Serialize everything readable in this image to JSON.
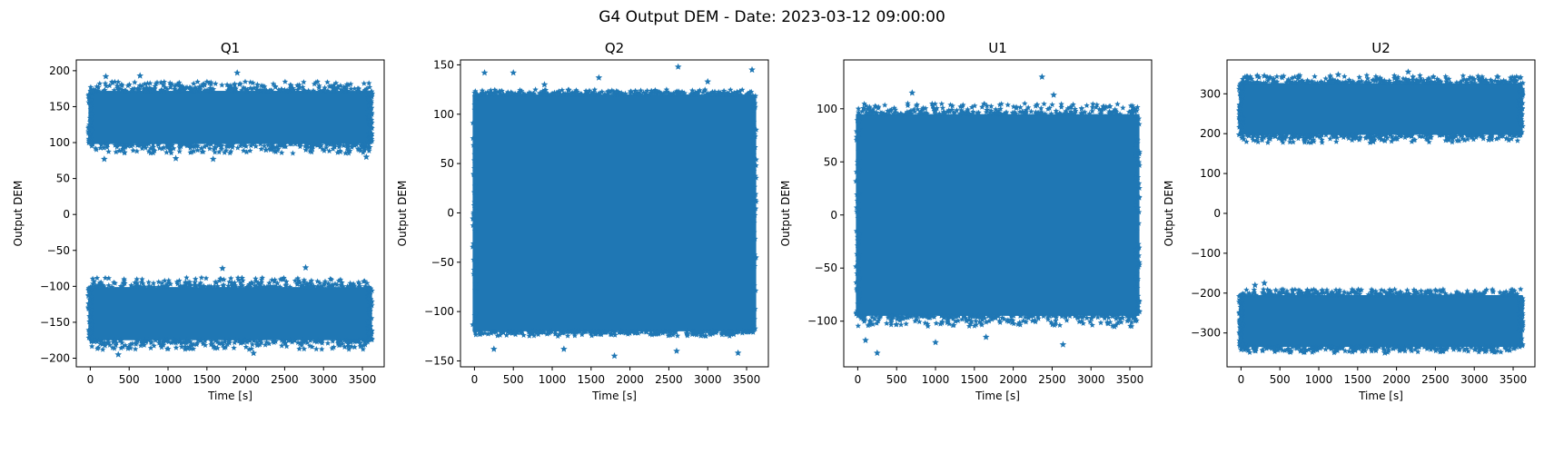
{
  "figure": {
    "suptitle": "G4 Output DEM - Date: 2023-03-12 09:00:00"
  },
  "colors": {
    "series": "#1f77b4",
    "axes": "#000000",
    "background": "#ffffff"
  },
  "chart_data": [
    {
      "type": "scatter",
      "marker": "star",
      "title": "Q1",
      "xlabel": "Time [s]",
      "ylabel": "Output DEM",
      "xlim": [
        -180,
        3780
      ],
      "ylim": [
        -212,
        215
      ],
      "xticks": [
        0,
        500,
        1000,
        1500,
        2000,
        2500,
        3000,
        3500
      ],
      "yticks": [
        -200,
        -150,
        -100,
        -50,
        0,
        50,
        100,
        150,
        200
      ],
      "x_range": [
        0,
        3600
      ],
      "bands": [
        {
          "center": 135,
          "core_halfwidth": 37,
          "outer_halfwidth": 50
        },
        {
          "center": -138,
          "core_halfwidth": 37,
          "outer_halfwidth": 50
        }
      ],
      "outliers": [
        [
          200,
          192
        ],
        [
          640,
          193
        ],
        [
          1890,
          197
        ],
        [
          1700,
          -75
        ],
        [
          2770,
          -74
        ],
        [
          360,
          -195
        ],
        [
          1100,
          78
        ],
        [
          1580,
          77
        ],
        [
          3550,
          80
        ],
        [
          180,
          77
        ],
        [
          2100,
          -193
        ]
      ],
      "grid": false
    },
    {
      "type": "scatter",
      "marker": "star",
      "title": "Q2",
      "xlabel": "Time [s]",
      "ylabel": "Output DEM",
      "xlim": [
        -180,
        3780
      ],
      "ylim": [
        -156,
        155
      ],
      "xticks": [
        0,
        500,
        1000,
        1500,
        2000,
        2500,
        3000,
        3500
      ],
      "yticks": [
        -150,
        -100,
        -50,
        0,
        50,
        100,
        150
      ],
      "x_range": [
        0,
        3600
      ],
      "bands": [
        {
          "center": 0,
          "core_halfwidth": 120,
          "outer_halfwidth": 125
        }
      ],
      "outliers": [
        [
          130,
          142
        ],
        [
          2620,
          148
        ],
        [
          3570,
          145
        ],
        [
          500,
          142
        ],
        [
          1800,
          -145
        ],
        [
          3390,
          -142
        ],
        [
          250,
          -138
        ],
        [
          1150,
          -138
        ],
        [
          2600,
          -140
        ],
        [
          900,
          130
        ],
        [
          1600,
          137
        ],
        [
          3000,
          133
        ]
      ],
      "grid": false
    },
    {
      "type": "scatter",
      "marker": "star",
      "title": "U1",
      "xlabel": "Time [s]",
      "ylabel": "Output DEM",
      "xlim": [
        -180,
        3780
      ],
      "ylim": [
        -143,
        146
      ],
      "xticks": [
        0,
        500,
        1000,
        1500,
        2000,
        2500,
        3000,
        3500
      ],
      "yticks": [
        -100,
        -50,
        0,
        50,
        100
      ],
      "x_range": [
        0,
        3600
      ],
      "bands": [
        {
          "center": 0,
          "core_halfwidth": 95,
          "outer_halfwidth": 105
        }
      ],
      "outliers": [
        [
          2370,
          130
        ],
        [
          250,
          -130
        ],
        [
          700,
          115
        ],
        [
          2640,
          -122
        ],
        [
          100,
          -118
        ],
        [
          1000,
          -120
        ],
        [
          2520,
          113
        ],
        [
          1650,
          -115
        ],
        [
          3300,
          -105
        ]
      ],
      "grid": false
    },
    {
      "type": "scatter",
      "marker": "star",
      "title": "U2",
      "xlabel": "Time [s]",
      "ylabel": "Output DEM",
      "xlim": [
        -180,
        3780
      ],
      "ylim": [
        -385,
        385
      ],
      "xticks": [
        0,
        500,
        1000,
        1500,
        2000,
        2500,
        3000,
        3500
      ],
      "yticks": [
        -300,
        -200,
        -100,
        0,
        100,
        200,
        300
      ],
      "x_range": [
        0,
        3600
      ],
      "bands": [
        {
          "center": 262,
          "core_halfwidth": 65,
          "outer_halfwidth": 85
        },
        {
          "center": -270,
          "core_halfwidth": 65,
          "outer_halfwidth": 80
        }
      ],
      "outliers": [
        [
          2150,
          355
        ],
        [
          300,
          345
        ],
        [
          1250,
          348
        ],
        [
          1700,
          180
        ],
        [
          180,
          -180
        ],
        [
          300,
          -175
        ],
        [
          1850,
          -350
        ],
        [
          2600,
          -345
        ],
        [
          100,
          195
        ]
      ],
      "grid": false
    }
  ]
}
